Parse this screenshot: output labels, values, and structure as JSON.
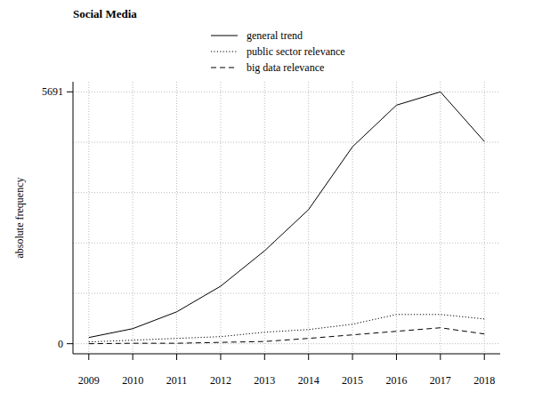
{
  "chart_data": {
    "type": "line",
    "title": "Social Media",
    "y_label": "absolute frequency",
    "x": [
      2009,
      2010,
      2011,
      2012,
      2013,
      2014,
      2015,
      2016,
      2017,
      2018
    ],
    "series": [
      {
        "name": "general trend",
        "color": "#000000",
        "line_style": "solid",
        "values": [
          140,
          340,
          720,
          1300,
          2100,
          3030,
          4450,
          5390,
          5691,
          4570
        ]
      },
      {
        "name": "public sector relevance",
        "color": "#000000",
        "line_style": "dotted",
        "values": [
          40,
          80,
          120,
          160,
          260,
          320,
          440,
          660,
          660,
          560
        ]
      },
      {
        "name": "big data relevance",
        "color": "#000000",
        "line_style": "dashed",
        "values": [
          0,
          10,
          10,
          30,
          50,
          120,
          200,
          280,
          360,
          220
        ]
      }
    ],
    "xlim": [
      2008.64,
      2018.36
    ],
    "xticks": [
      2009,
      2010,
      2011,
      2012,
      2013,
      2014,
      2015,
      2016,
      2017,
      2018
    ],
    "ylim": [
      -227.64,
      5918.64
    ],
    "yticks": [
      0,
      5691
    ],
    "grid": true,
    "legend": "top"
  }
}
